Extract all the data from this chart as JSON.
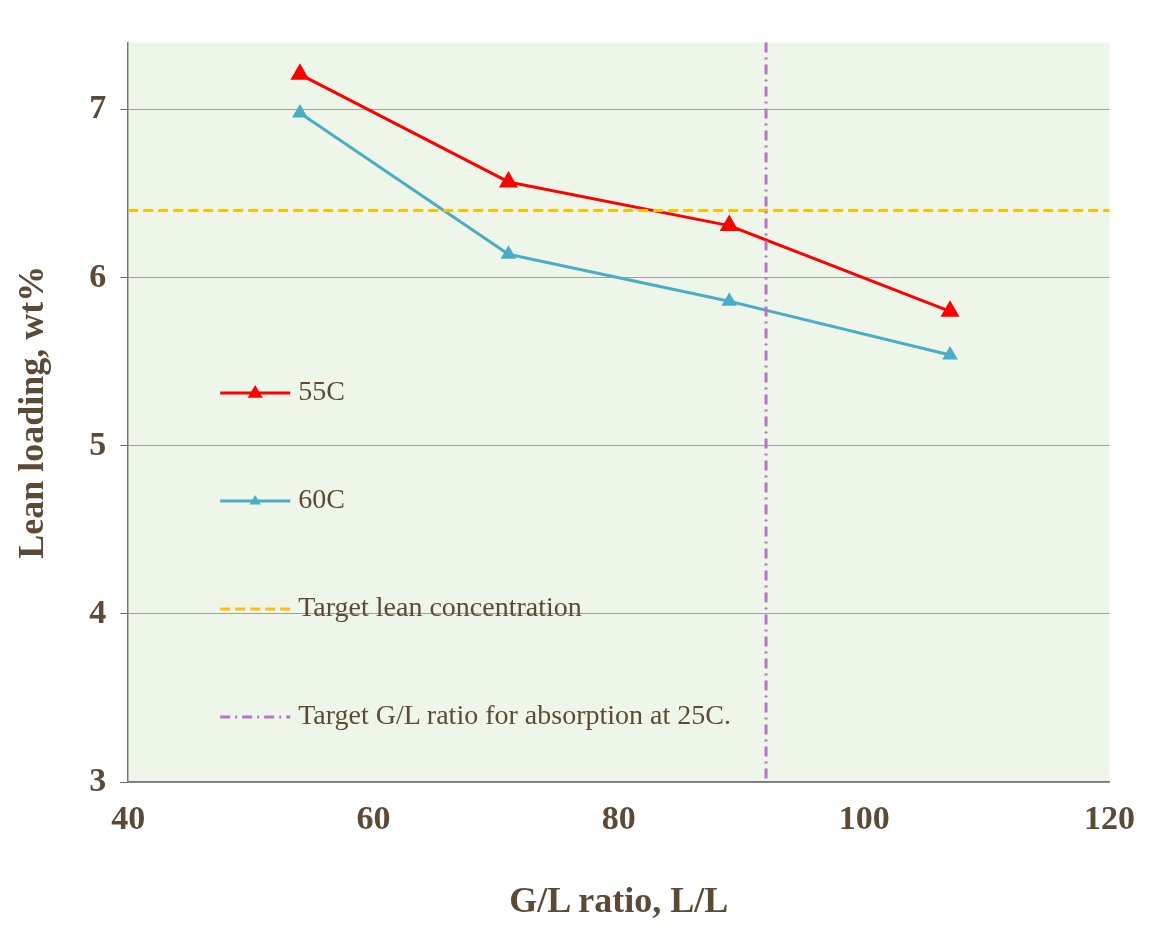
{
  "chart_data": {
    "type": "line",
    "xlabel": "G/L ratio, L/L",
    "ylabel": "Lean loading, wt%",
    "x": [
      54,
      71,
      89,
      107
    ],
    "series": [
      {
        "name": "55C",
        "color": "#ff0000",
        "values": [
          7.21,
          6.57,
          6.31,
          5.8
        ]
      },
      {
        "name": "60C",
        "color": "#4bacc6",
        "values": [
          6.98,
          6.14,
          5.86,
          5.54
        ]
      }
    ],
    "xlim": [
      40,
      120
    ],
    "xticks": [
      40,
      60,
      80,
      100,
      120
    ],
    "ylim": [
      3,
      7.4
    ],
    "yticks": [
      3,
      4,
      5,
      6,
      7
    ],
    "ref_lines": [
      {
        "axis": "y",
        "value": 6.4,
        "label": "Target lean concentration",
        "color": "#ffc000",
        "line_style": "dashed"
      },
      {
        "axis": "x",
        "value": 92,
        "label": "Target G/L ratio for absorption at 25C.",
        "color": "#b774c9",
        "line_style": "dashdot"
      }
    ],
    "grid": "y",
    "legend": "bottom left",
    "marker": "triangle",
    "line_style": "solid"
  }
}
